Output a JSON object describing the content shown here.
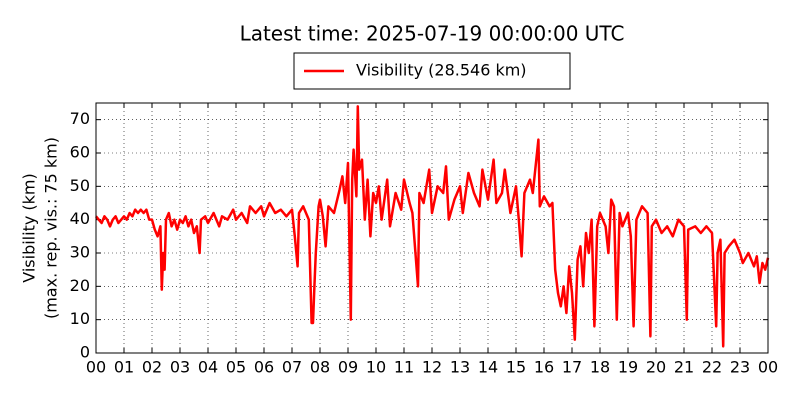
{
  "chart_data": {
    "type": "line",
    "title": "Latest time: 2025-07-19 00:00:00 UTC",
    "ylabel": [
      "Visibility (km)",
      "(max. rep. vis.: 75 km)"
    ],
    "x": [
      0,
      0.1,
      0.2,
      0.3,
      0.4,
      0.5,
      0.6,
      0.7,
      0.8,
      0.9,
      1.0,
      1.1,
      1.2,
      1.3,
      1.4,
      1.5,
      1.6,
      1.7,
      1.8,
      1.9,
      2.0,
      2.1,
      2.2,
      2.3,
      2.35,
      2.4,
      2.45,
      2.5,
      2.6,
      2.7,
      2.8,
      2.9,
      3.0,
      3.1,
      3.2,
      3.3,
      3.4,
      3.5,
      3.6,
      3.7,
      3.75,
      3.9,
      4.0,
      4.2,
      4.4,
      4.5,
      4.7,
      4.9,
      5.0,
      5.2,
      5.4,
      5.5,
      5.7,
      5.9,
      6.0,
      6.2,
      6.4,
      6.6,
      6.8,
      7.0,
      7.1,
      7.2,
      7.25,
      7.4,
      7.6,
      7.7,
      7.75,
      7.8,
      7.85,
      7.95,
      8.0,
      8.1,
      8.2,
      8.3,
      8.5,
      8.7,
      8.8,
      8.9,
      9.0,
      9.1,
      9.15,
      9.2,
      9.3,
      9.35,
      9.4,
      9.5,
      9.6,
      9.7,
      9.8,
      9.9,
      10.0,
      10.1,
      10.2,
      10.4,
      10.5,
      10.7,
      10.9,
      11.0,
      11.2,
      11.3,
      11.5,
      11.55,
      11.7,
      11.9,
      12.0,
      12.2,
      12.4,
      12.5,
      12.6,
      12.8,
      13.0,
      13.1,
      13.3,
      13.5,
      13.7,
      13.8,
      14.0,
      14.1,
      14.2,
      14.3,
      14.5,
      14.6,
      14.8,
      15.0,
      15.1,
      15.2,
      15.3,
      15.5,
      15.6,
      15.8,
      15.85,
      16.0,
      16.2,
      16.3,
      16.35,
      16.4,
      16.5,
      16.6,
      16.7,
      16.8,
      16.9,
      17.0,
      17.1,
      17.2,
      17.3,
      17.4,
      17.5,
      17.6,
      17.7,
      17.8,
      17.9,
      18.0,
      18.2,
      18.3,
      18.4,
      18.5,
      18.6,
      18.7,
      18.8,
      19.0,
      19.1,
      19.2,
      19.3,
      19.5,
      19.7,
      19.8,
      19.85,
      20.0,
      20.2,
      20.4,
      20.6,
      20.8,
      21.0,
      21.1,
      21.15,
      21.4,
      21.6,
      21.8,
      22.0,
      22.15,
      22.2,
      22.3,
      22.4,
      22.45,
      22.6,
      22.8,
      23.0,
      23.1,
      23.3,
      23.5,
      23.6,
      23.7,
      23.8,
      23.9,
      24
    ],
    "series": [
      {
        "name": "Visibility (28.546 km)",
        "color": "#ff0000",
        "values": [
          41,
          40,
          39,
          41,
          40,
          38,
          40,
          41,
          39,
          40,
          41,
          40,
          42,
          41,
          43,
          42,
          43,
          42,
          43,
          40,
          40,
          37,
          35,
          38,
          19,
          30,
          25,
          40,
          42,
          38,
          40,
          37,
          40,
          39,
          41,
          38,
          40,
          36,
          38,
          30,
          40,
          41,
          39,
          42,
          38,
          41,
          40,
          43,
          40,
          42,
          39,
          44,
          42,
          44,
          41,
          45,
          42,
          43,
          41,
          43,
          35,
          26,
          42,
          44,
          40,
          9,
          9,
          20,
          30,
          44,
          46,
          41,
          32,
          44,
          42,
          49,
          53,
          45,
          57,
          10,
          52,
          61,
          47,
          74,
          55,
          58,
          40,
          52,
          35,
          48,
          45,
          50,
          40,
          52,
          38,
          48,
          43,
          52,
          45,
          42,
          20,
          48,
          45,
          55,
          42,
          50,
          48,
          56,
          40,
          46,
          50,
          42,
          54,
          48,
          44,
          55,
          46,
          52,
          58,
          45,
          48,
          55,
          42,
          50,
          40,
          29,
          48,
          52,
          48,
          64,
          44,
          47,
          44,
          45,
          35,
          25,
          18,
          14,
          20,
          12,
          26,
          18,
          4,
          28,
          32,
          20,
          36,
          30,
          40,
          8,
          38,
          42,
          38,
          30,
          46,
          44,
          10,
          42,
          38,
          42,
          35,
          8,
          40,
          44,
          42,
          5,
          38,
          40,
          36,
          38,
          35,
          40,
          38,
          10,
          37,
          38,
          36,
          38,
          36,
          8,
          30,
          34,
          2,
          30,
          32,
          34,
          30,
          27,
          30,
          26,
          29,
          21,
          27,
          25,
          28.546
        ]
      }
    ],
    "xlim": [
      0,
      24
    ],
    "xticks": [
      {
        "value": 0,
        "label": "00"
      },
      {
        "value": 1,
        "label": "01"
      },
      {
        "value": 2,
        "label": "02"
      },
      {
        "value": 3,
        "label": "03"
      },
      {
        "value": 4,
        "label": "04"
      },
      {
        "value": 5,
        "label": "05"
      },
      {
        "value": 6,
        "label": "06"
      },
      {
        "value": 7,
        "label": "07"
      },
      {
        "value": 8,
        "label": "08"
      },
      {
        "value": 9,
        "label": "09"
      },
      {
        "value": 10,
        "label": "10"
      },
      {
        "value": 11,
        "label": "11"
      },
      {
        "value": 12,
        "label": "12"
      },
      {
        "value": 13,
        "label": "13"
      },
      {
        "value": 14,
        "label": "14"
      },
      {
        "value": 15,
        "label": "15"
      },
      {
        "value": 16,
        "label": "16"
      },
      {
        "value": 17,
        "label": "17"
      },
      {
        "value": 18,
        "label": "18"
      },
      {
        "value": 19,
        "label": "19"
      },
      {
        "value": 20,
        "label": "20"
      },
      {
        "value": 21,
        "label": "21"
      },
      {
        "value": 22,
        "label": "22"
      },
      {
        "value": 23,
        "label": "23"
      },
      {
        "value": 24,
        "label": "00"
      }
    ],
    "ylim": [
      0,
      75
    ],
    "yticks": [
      0,
      10,
      20,
      30,
      40,
      50,
      60,
      70
    ],
    "grid": true
  }
}
